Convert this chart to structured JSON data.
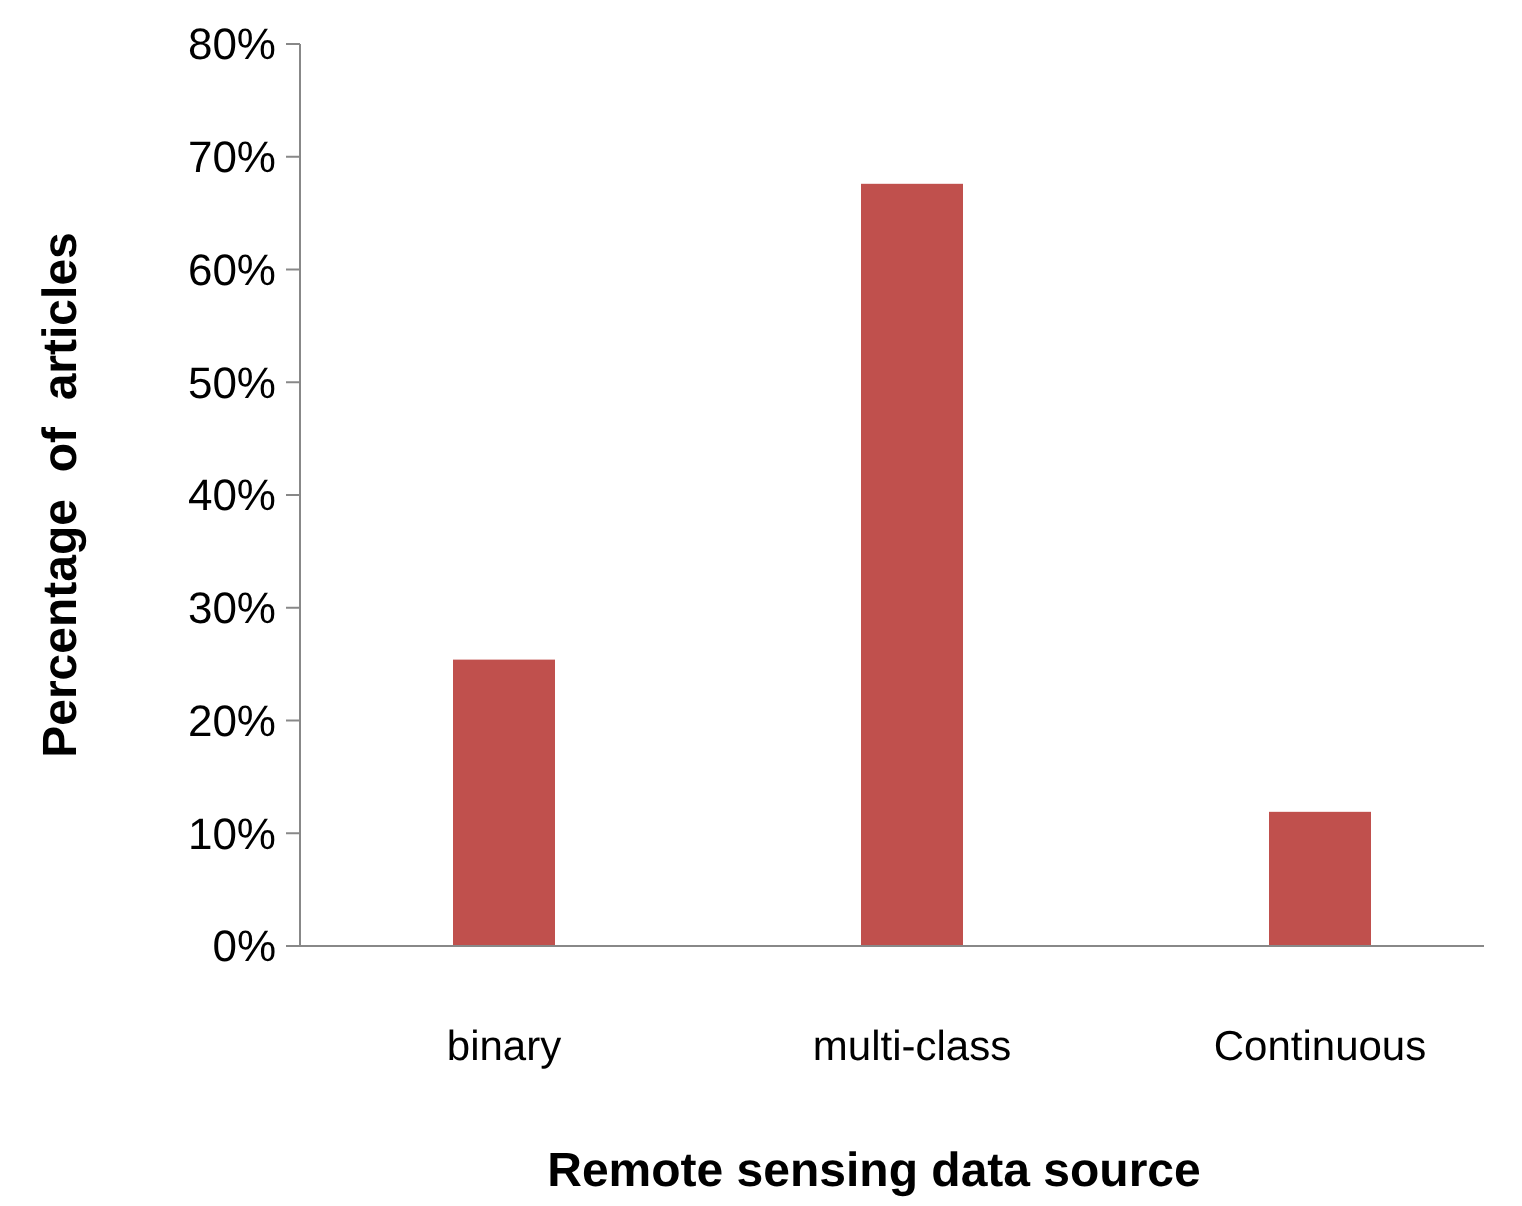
{
  "chart_data": {
    "type": "bar",
    "xlabel": "Remote sensing data source",
    "ylabel": "Percentage  of  articles",
    "categories": [
      "binary",
      "multi-class",
      "Continuous"
    ],
    "values": [
      25.4,
      67.6,
      11.9
    ],
    "color": "#c0504d",
    "ylim": [
      0,
      80
    ],
    "yticks": [
      {
        "value": 0,
        "label": "0%"
      },
      {
        "value": 10,
        "label": "10%"
      },
      {
        "value": 20,
        "label": "20%"
      },
      {
        "value": 30,
        "label": "30%"
      },
      {
        "value": 40,
        "label": "40%"
      },
      {
        "value": 50,
        "label": "50%"
      },
      {
        "value": 60,
        "label": "60%"
      },
      {
        "value": 70,
        "label": "70%"
      },
      {
        "value": 80,
        "label": "80%"
      }
    ],
    "grid": false
  }
}
